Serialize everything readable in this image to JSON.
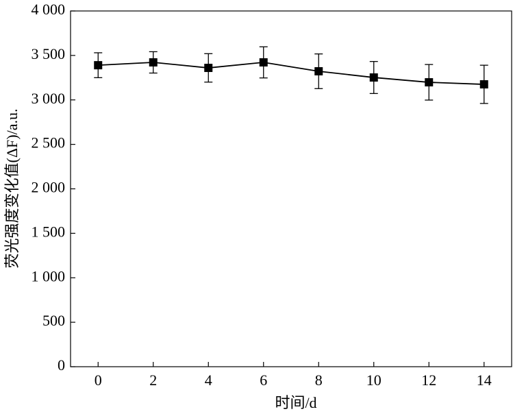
{
  "chart_data": {
    "type": "line",
    "x_label": "时间/d",
    "y_label": "荧光强度变化值(ΔF)/a.u.",
    "x": [
      0,
      2,
      4,
      6,
      8,
      10,
      12,
      14
    ],
    "values": [
      3390,
      3422,
      3360,
      3422,
      3322,
      3252,
      3198,
      3175
    ],
    "errors": [
      140,
      120,
      160,
      175,
      195,
      180,
      200,
      215
    ],
    "color": "#000000",
    "xlim": [
      -1,
      15
    ],
    "xticks": [
      0,
      2,
      4,
      6,
      8,
      10,
      12,
      14
    ],
    "ylim": [
      0,
      4000
    ],
    "yticks": [
      0,
      500,
      {
        "value": 1000,
        "label": "1 000"
      },
      {
        "value": 1500,
        "label": "1 500"
      },
      {
        "value": 2000,
        "label": "2 000"
      },
      {
        "value": 2500,
        "label": "2 500"
      },
      {
        "value": 3000,
        "label": "3 000"
      },
      {
        "value": 3500,
        "label": "3 500"
      },
      {
        "value": 4000,
        "label": "4 000"
      }
    ]
  }
}
